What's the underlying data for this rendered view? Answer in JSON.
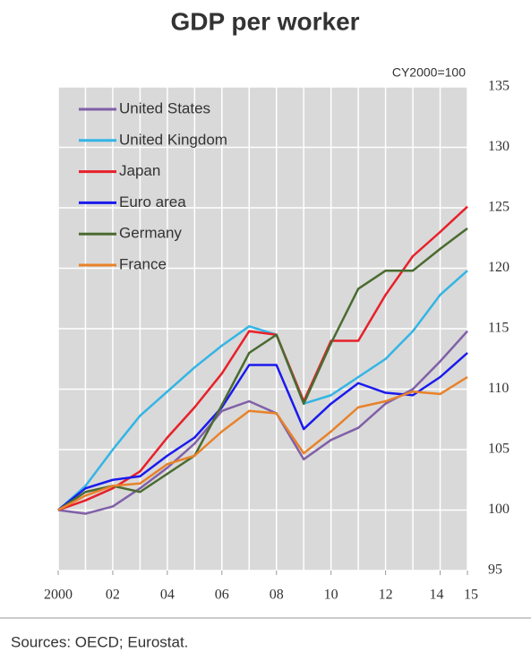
{
  "chart_data": {
    "type": "line",
    "title": "GDP per worker",
    "annotation": "CY2000=100",
    "source": "Sources: OECD; Eurostat.",
    "x": [
      2000,
      2001,
      2002,
      2003,
      2004,
      2005,
      2006,
      2007,
      2008,
      2009,
      2010,
      2011,
      2012,
      2013,
      2014,
      2015
    ],
    "xlim": [
      2000,
      2015
    ],
    "xticks": [
      {
        "value": 2000,
        "label": "2000"
      },
      {
        "value": 2002,
        "label": "02"
      },
      {
        "value": 2004,
        "label": "04"
      },
      {
        "value": 2006,
        "label": "06"
      },
      {
        "value": 2008,
        "label": "08"
      },
      {
        "value": 2010,
        "label": "10"
      },
      {
        "value": 2012,
        "label": "12"
      },
      {
        "value": 2014,
        "label": "14"
      },
      {
        "value": 2015,
        "label": "15"
      }
    ],
    "ylim": [
      95,
      135
    ],
    "yticks": [
      95,
      100,
      105,
      110,
      115,
      120,
      125,
      130,
      135
    ],
    "grid": true,
    "legend": "upper left",
    "series": [
      {
        "name": "United States",
        "color": "#8060a8",
        "values": [
          100,
          99.7,
          100.3,
          101.8,
          103.5,
          105.5,
          108.2,
          109,
          108,
          104.2,
          105.8,
          106.8,
          108.8,
          110,
          112.3,
          114.8
        ]
      },
      {
        "name": "United Kingdom",
        "color": "#33b5e5",
        "values": [
          100,
          102,
          105,
          107.8,
          109.8,
          111.8,
          113.6,
          115.2,
          114.5,
          108.8,
          109.5,
          111,
          112.5,
          114.8,
          117.8,
          119.8
        ]
      },
      {
        "name": "Japan",
        "color": "#e8202a",
        "values": [
          100,
          100.8,
          101.8,
          103.2,
          106,
          108.5,
          111.3,
          114.8,
          114.5,
          109,
          114,
          114,
          117.8,
          121,
          123,
          125.1
        ]
      },
      {
        "name": "Euro area",
        "color": "#1a1aee",
        "values": [
          100,
          101.8,
          102.5,
          102.8,
          104.5,
          106,
          108.5,
          112,
          112,
          106.7,
          108.8,
          110.5,
          109.7,
          109.5,
          111,
          113
        ]
      },
      {
        "name": "Germany",
        "color": "#4a6b30",
        "values": [
          100,
          101.5,
          102,
          101.5,
          103,
          104.5,
          108.7,
          113,
          114.5,
          108.8,
          113.8,
          118.3,
          119.8,
          119.8,
          121.6,
          123.3
        ]
      },
      {
        "name": "France",
        "color": "#e8822a",
        "values": [
          100,
          101.2,
          102,
          102.2,
          103.8,
          104.5,
          106.5,
          108.2,
          108,
          104.7,
          106.5,
          108.5,
          109,
          109.8,
          109.6,
          111
        ]
      }
    ]
  }
}
